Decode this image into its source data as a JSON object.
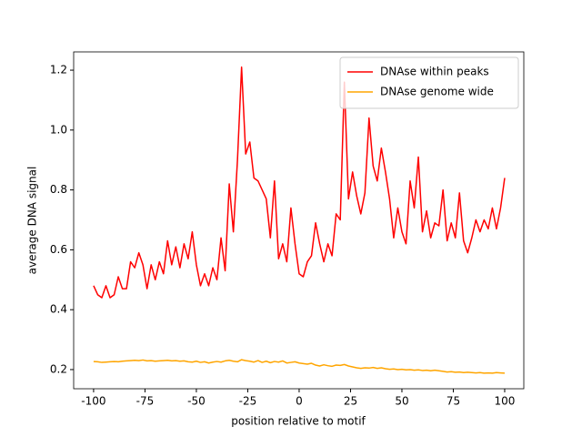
{
  "chart_data": {
    "type": "line",
    "xlabel": "position relative to motif",
    "ylabel": "average DNA signal",
    "x": [
      -100,
      -98,
      -96,
      -94,
      -92,
      -90,
      -88,
      -86,
      -84,
      -82,
      -80,
      -78,
      -76,
      -74,
      -72,
      -70,
      -68,
      -66,
      -64,
      -62,
      -60,
      -58,
      -56,
      -54,
      -52,
      -50,
      -48,
      -46,
      -44,
      -42,
      -40,
      -38,
      -36,
      -34,
      -32,
      -30,
      -28,
      -26,
      -24,
      -22,
      -20,
      -18,
      -16,
      -14,
      -12,
      -10,
      -8,
      -6,
      -4,
      -2,
      0,
      2,
      4,
      6,
      8,
      10,
      12,
      14,
      16,
      18,
      20,
      22,
      24,
      26,
      28,
      30,
      32,
      34,
      36,
      38,
      40,
      42,
      44,
      46,
      48,
      50,
      52,
      54,
      56,
      58,
      60,
      62,
      64,
      66,
      68,
      70,
      72,
      74,
      76,
      78,
      80,
      82,
      84,
      86,
      88,
      90,
      92,
      94,
      96,
      98,
      100
    ],
    "series": [
      {
        "name": "DNAse within peaks",
        "color": "#ff0000",
        "values": [
          0.48,
          0.45,
          0.44,
          0.48,
          0.44,
          0.45,
          0.51,
          0.47,
          0.47,
          0.56,
          0.54,
          0.59,
          0.55,
          0.47,
          0.55,
          0.5,
          0.56,
          0.52,
          0.63,
          0.55,
          0.61,
          0.54,
          0.62,
          0.57,
          0.66,
          0.55,
          0.48,
          0.52,
          0.48,
          0.54,
          0.5,
          0.64,
          0.53,
          0.82,
          0.66,
          0.9,
          1.21,
          0.92,
          0.96,
          0.84,
          0.83,
          0.8,
          0.77,
          0.64,
          0.83,
          0.57,
          0.62,
          0.56,
          0.74,
          0.62,
          0.52,
          0.51,
          0.56,
          0.58,
          0.69,
          0.62,
          0.56,
          0.62,
          0.58,
          0.72,
          0.7,
          1.16,
          0.77,
          0.86,
          0.78,
          0.72,
          0.79,
          1.04,
          0.88,
          0.83,
          0.94,
          0.86,
          0.77,
          0.64,
          0.74,
          0.66,
          0.62,
          0.83,
          0.74,
          0.91,
          0.66,
          0.73,
          0.64,
          0.69,
          0.68,
          0.8,
          0.63,
          0.69,
          0.64,
          0.79,
          0.63,
          0.59,
          0.64,
          0.7,
          0.66,
          0.7,
          0.67,
          0.74,
          0.67,
          0.74,
          0.84
        ]
      },
      {
        "name": "DNAse genome wide",
        "color": "#ffa500",
        "values": [
          0.227,
          0.226,
          0.224,
          0.225,
          0.226,
          0.227,
          0.226,
          0.228,
          0.229,
          0.23,
          0.231,
          0.23,
          0.232,
          0.229,
          0.23,
          0.228,
          0.229,
          0.23,
          0.231,
          0.229,
          0.23,
          0.228,
          0.229,
          0.226,
          0.225,
          0.228,
          0.224,
          0.226,
          0.222,
          0.225,
          0.227,
          0.225,
          0.229,
          0.231,
          0.228,
          0.226,
          0.233,
          0.23,
          0.228,
          0.225,
          0.23,
          0.224,
          0.228,
          0.223,
          0.227,
          0.225,
          0.229,
          0.222,
          0.224,
          0.226,
          0.222,
          0.22,
          0.218,
          0.221,
          0.215,
          0.212,
          0.216,
          0.213,
          0.211,
          0.215,
          0.214,
          0.217,
          0.212,
          0.209,
          0.206,
          0.204,
          0.206,
          0.205,
          0.207,
          0.204,
          0.206,
          0.203,
          0.201,
          0.202,
          0.2,
          0.201,
          0.199,
          0.2,
          0.198,
          0.199,
          0.197,
          0.198,
          0.196,
          0.198,
          0.196,
          0.194,
          0.192,
          0.193,
          0.191,
          0.192,
          0.19,
          0.191,
          0.19,
          0.189,
          0.19,
          0.188,
          0.189,
          0.188,
          0.19,
          0.189,
          0.188
        ]
      }
    ],
    "xlim": [
      -109.7,
      109.3
    ],
    "ylim": [
      0.136,
      1.261
    ],
    "xticks": [
      -100,
      -75,
      -50,
      -25,
      0,
      25,
      50,
      75,
      100
    ],
    "yticks": [
      0.2,
      0.4,
      0.6,
      0.8,
      {
        "value": 1,
        "label": "1.0"
      },
      1.2
    ],
    "grid": false,
    "legend": "upper right"
  }
}
